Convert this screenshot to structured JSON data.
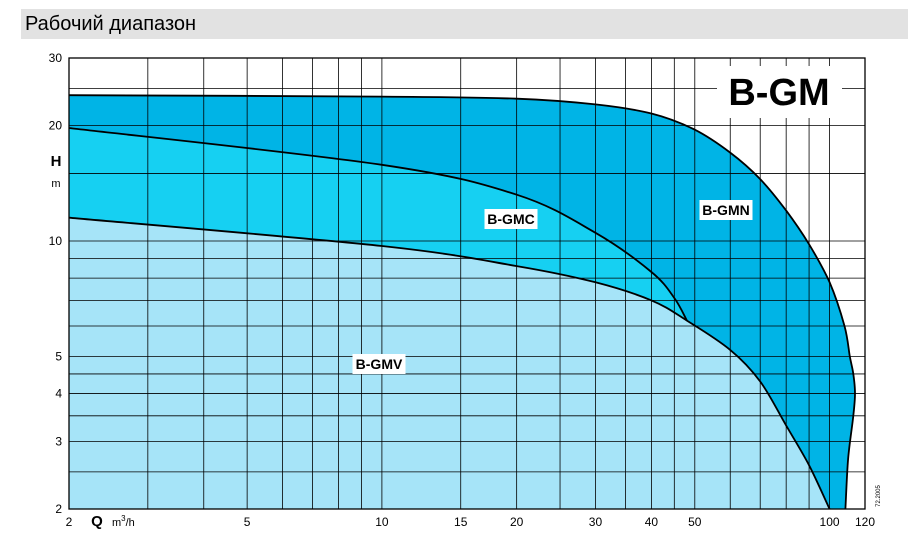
{
  "header": {
    "title": "Рабочий диапазон"
  },
  "chart_data": {
    "type": "area",
    "title": "B-GM",
    "x_scale": "log",
    "y_scale": "log",
    "xlim": [
      2,
      120
    ],
    "ylim": [
      2,
      30
    ],
    "xlabel": "Q",
    "xunit_base": "m",
    "xunit_exp": "3",
    "xunit_tail": "/h",
    "ylabel": "H",
    "yunit": "m",
    "x_ticks": [
      2,
      5,
      10,
      15,
      20,
      30,
      40,
      50,
      100,
      120
    ],
    "y_ticks": [
      2,
      3,
      4,
      5,
      10,
      20,
      30
    ],
    "x_grid": [
      2,
      3,
      4,
      5,
      6,
      7,
      8,
      9,
      10,
      15,
      20,
      25,
      30,
      35,
      40,
      45,
      50,
      60,
      70,
      80,
      90,
      100,
      120
    ],
    "y_grid": [
      2,
      2.5,
      3,
      3.5,
      4,
      4.5,
      5,
      6,
      7,
      8,
      9,
      10,
      15,
      20,
      25,
      30
    ],
    "grid": true,
    "fine_print": "72.2005",
    "series": [
      {
        "name": "B-GMN",
        "color": "#00b4e6",
        "x": [
          2,
          10,
          20,
          30,
          40,
          50,
          60,
          70,
          80,
          90,
          100,
          108,
          111,
          113,
          114,
          113,
          110,
          108.5
        ],
        "y": [
          24,
          23.8,
          23.5,
          22.7,
          21.5,
          19.5,
          17,
          14.5,
          12,
          9.8,
          7.8,
          6,
          5,
          4.5,
          4,
          3.5,
          2.7,
          2
        ]
      },
      {
        "name": "B-GMC",
        "color": "#16d0f2",
        "x": [
          2,
          10,
          20,
          30,
          40,
          45,
          48
        ],
        "y": [
          19.7,
          15.8,
          13.2,
          10.5,
          8.3,
          7.1,
          6.2
        ]
      },
      {
        "name": "B-GMV",
        "color": "#a6e4f8",
        "x": [
          2,
          10,
          20,
          30,
          40,
          48,
          60,
          70,
          80,
          90,
          100
        ],
        "y": [
          11.5,
          9.7,
          8.6,
          7.8,
          7,
          6.2,
          5.2,
          4.3,
          3.3,
          2.6,
          2
        ]
      }
    ]
  }
}
